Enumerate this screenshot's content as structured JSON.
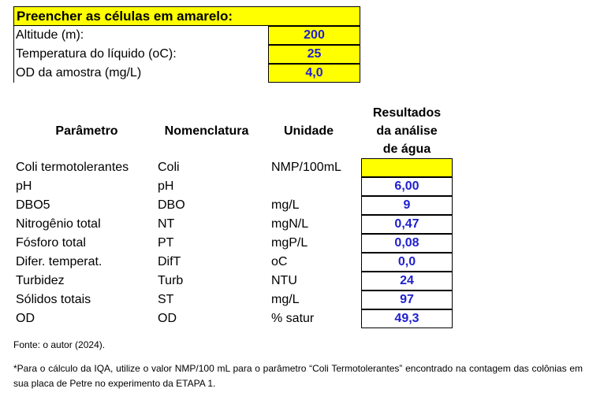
{
  "inputs": {
    "header": "Preencher as células em amarelo:",
    "rows": [
      {
        "label": "Altitude (m):",
        "value": "200"
      },
      {
        "label": "Temperatura do líquido (oC):",
        "value": "25"
      },
      {
        "label": "OD da amostra (mg/L)",
        "value": "4,0"
      }
    ]
  },
  "table": {
    "headers": {
      "parameter": "Parâmetro",
      "nomenclature": "Nomenclatura",
      "unit": "Unidade",
      "result_l1": "Resultados",
      "result_l2": "da análise",
      "result_l3": "de água"
    },
    "rows": [
      {
        "parameter": "Coli termotolerantes",
        "nomenclature": "Coli",
        "unit": "NMP/100mL",
        "result": ""
      },
      {
        "parameter": "pH",
        "nomenclature": "pH",
        "unit": "",
        "result": "6,00"
      },
      {
        "parameter": "DBO5",
        "nomenclature": "DBO",
        "unit": "mg/L",
        "result": "9"
      },
      {
        "parameter": "Nitrogênio total",
        "nomenclature": "NT",
        "unit": "mgN/L",
        "result": "0,47"
      },
      {
        "parameter": "Fósforo total",
        "nomenclature": "PT",
        "unit": "mgP/L",
        "result": "0,08"
      },
      {
        "parameter": "Difer. temperat.",
        "nomenclature": "DifT",
        "unit": "oC",
        "result": "0,0"
      },
      {
        "parameter": "Turbidez",
        "nomenclature": "Turb",
        "unit": "NTU",
        "result": "24"
      },
      {
        "parameter": "Sólidos totais",
        "nomenclature": "ST",
        "unit": "mg/L",
        "result": "97"
      },
      {
        "parameter": "OD",
        "nomenclature": "OD",
        "unit": "% satur",
        "result": "49,3"
      }
    ]
  },
  "source": "Fonte: o autor (2024).",
  "note": "*Para o cálculo da IQA, utilize o valor NMP/100 mL para o parâmetro “Coli Termotolerantes” encontrado na contagem das colônias em sua placa de Petre no experimento da ETAPA 1.",
  "colors": {
    "input_fill": "#ffff00",
    "value_text": "#1f1fcf"
  }
}
